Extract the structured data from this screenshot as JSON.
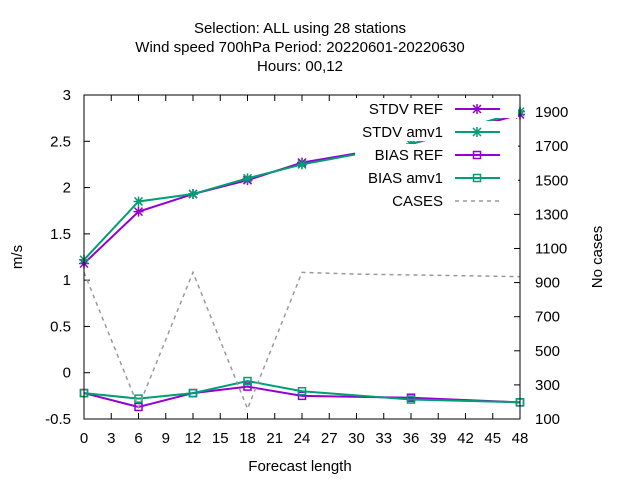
{
  "chart_data": {
    "type": "line",
    "title": [
      "Selection: ALL using    28 stations",
      "Wind speed 700hPa   Period: 20220601-20220630",
      "Hours:  00,12"
    ],
    "xlabel": "Forecast length",
    "ylabel": "m/s",
    "y2label": "No cases",
    "xlim": [
      0,
      48
    ],
    "ylim": [
      -0.5,
      3
    ],
    "y2lim": [
      100,
      2000
    ],
    "xticks": [
      0,
      3,
      6,
      9,
      12,
      15,
      18,
      21,
      24,
      27,
      30,
      33,
      36,
      39,
      42,
      45,
      48
    ],
    "yticks": [
      -0.5,
      0,
      0.5,
      1,
      1.5,
      2,
      2.5,
      3
    ],
    "ytick_labels": [
      "-0.5",
      "0",
      "0.5",
      "1",
      "1.5",
      "2",
      "2.5",
      "3"
    ],
    "y2ticks": [
      100,
      300,
      500,
      700,
      900,
      1100,
      1300,
      1500,
      1700,
      1900
    ],
    "legend_position": "top-right",
    "grid": false,
    "series": [
      {
        "name": "STDV REF",
        "axis": "y",
        "color": "#9400d3",
        "marker": "star",
        "dash": "",
        "x": [
          0,
          6,
          12,
          18,
          24,
          36,
          48
        ],
        "values": [
          1.18,
          1.74,
          1.93,
          2.08,
          2.27,
          2.47,
          2.79
        ]
      },
      {
        "name": "STDV amv1",
        "axis": "y",
        "color": "#009e73",
        "marker": "star",
        "dash": "",
        "x": [
          0,
          6,
          12,
          18,
          24,
          36,
          48
        ],
        "values": [
          1.22,
          1.85,
          1.93,
          2.1,
          2.25,
          2.47,
          2.82
        ]
      },
      {
        "name": "BIAS REF",
        "axis": "y",
        "color": "#9400d3",
        "marker": "square",
        "dash": "",
        "x": [
          0,
          6,
          12,
          18,
          24,
          36,
          48
        ],
        "values": [
          -0.22,
          -0.37,
          -0.22,
          -0.15,
          -0.25,
          -0.27,
          -0.32
        ]
      },
      {
        "name": "BIAS amv1",
        "axis": "y",
        "color": "#009e73",
        "marker": "square",
        "dash": "",
        "x": [
          0,
          6,
          12,
          18,
          24,
          36,
          48
        ],
        "values": [
          -0.22,
          -0.28,
          -0.22,
          -0.09,
          -0.2,
          -0.29,
          -0.32
        ]
      },
      {
        "name": "CASES",
        "axis": "y2",
        "color": "#999999",
        "marker": "",
        "dash": "4,4",
        "x": [
          0,
          6,
          12,
          18,
          24,
          30,
          36,
          42,
          48
        ],
        "values": [
          960,
          170,
          960,
          160,
          960,
          950,
          945,
          940,
          935
        ]
      }
    ]
  }
}
